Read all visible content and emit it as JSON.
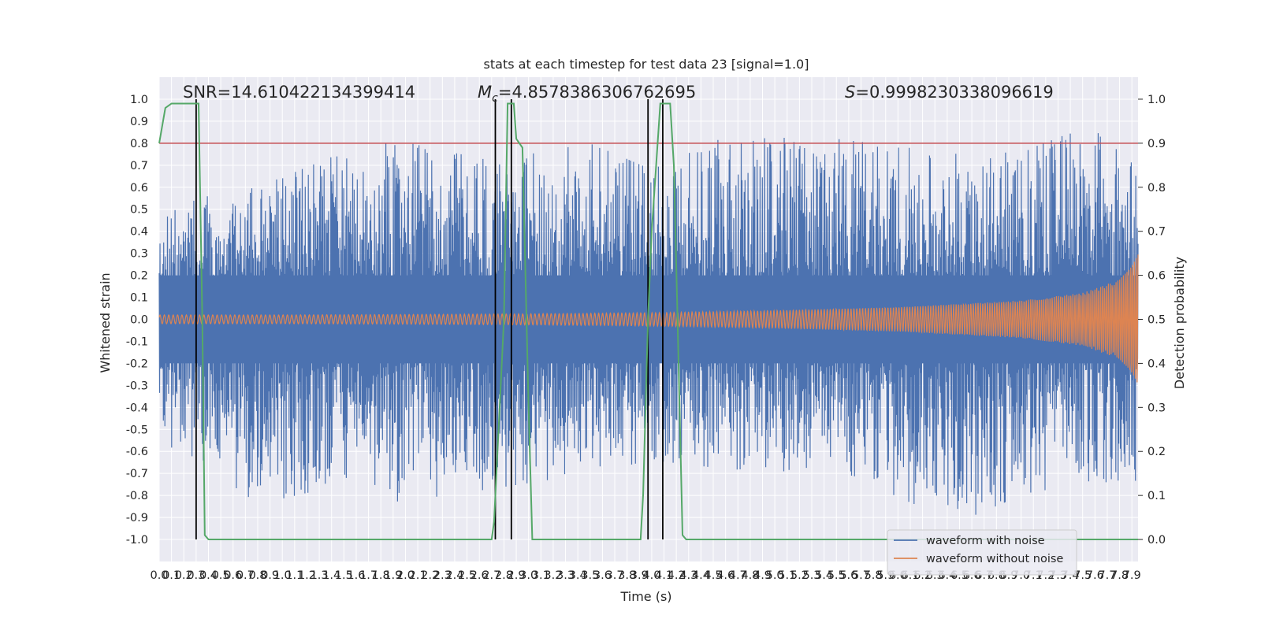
{
  "chart_data": {
    "type": "line",
    "title": "stats at each timestep for test data 23 [signal=1.0]",
    "xlabel": "Time (s)",
    "ylabel": "Whitened strain",
    "y2label": "Detection probability",
    "xlim": [
      0.0,
      7.95
    ],
    "ylim": [
      -1.1,
      1.1
    ],
    "y2lim": [
      -0.05,
      1.05
    ],
    "x_ticks": [
      "0.0",
      "0.1",
      "0.2",
      "0.3",
      "0.4",
      "0.5",
      "0.6",
      "0.7",
      "0.8",
      "0.9",
      "1.0",
      "1.1",
      "1.2",
      "1.3",
      "1.4",
      "1.5",
      "1.6",
      "1.7",
      "1.8",
      "1.9",
      "2.0",
      "2.1",
      "2.2",
      "2.3",
      "2.4",
      "2.5",
      "2.6",
      "2.7",
      "2.8",
      "2.9",
      "3.0",
      "3.1",
      "3.2",
      "3.3",
      "3.4",
      "3.5",
      "3.6",
      "3.7",
      "3.8",
      "3.9",
      "4.0",
      "4.1",
      "4.2",
      "4.3",
      "4.4",
      "4.5",
      "4.6",
      "4.7",
      "4.8",
      "4.9",
      "5.0",
      "5.1",
      "5.2",
      "5.3",
      "5.4",
      "5.5",
      "5.6",
      "5.7",
      "5.8",
      "5.9",
      "6.0",
      "6.1",
      "6.2",
      "6.3",
      "6.4",
      "6.5",
      "6.6",
      "6.7",
      "6.8",
      "6.9",
      "7.0",
      "7.1",
      "7.2",
      "7.3",
      "7.4",
      "7.5",
      "7.6",
      "7.7",
      "7.8",
      "7.9"
    ],
    "y_ticks": [
      "-1.0",
      "-0.9",
      "-0.8",
      "-0.7",
      "-0.6",
      "-0.5",
      "-0.4",
      "-0.3",
      "-0.2",
      "-0.1",
      "0.0",
      "0.1",
      "0.2",
      "0.3",
      "0.4",
      "0.5",
      "0.6",
      "0.7",
      "0.8",
      "0.9",
      "1.0"
    ],
    "y2_ticks": [
      "0.0",
      "0.1",
      "0.2",
      "0.3",
      "0.4",
      "0.5",
      "0.6",
      "0.7",
      "0.8",
      "0.9",
      "1.0"
    ],
    "threshold": 0.9,
    "series": [
      {
        "name": "waveform with noise",
        "axis": "left",
        "color": "#4c72b0",
        "style": "dense noisy strain, envelope approximately ±0.5 with peaks to ±0.9",
        "x": [
          0.0,
          0.3,
          0.8,
          1.5,
          1.95,
          2.7,
          3.5,
          4.0,
          4.6,
          5.5,
          6.5,
          7.0,
          7.6,
          7.95
        ],
        "upper_envelope": [
          0.46,
          0.55,
          0.6,
          0.76,
          0.81,
          0.72,
          0.8,
          0.68,
          0.83,
          0.82,
          0.75,
          0.76,
          0.89,
          0.69
        ],
        "lower_envelope": [
          -0.56,
          -0.63,
          -0.84,
          -0.75,
          -0.83,
          -0.77,
          -0.7,
          -0.64,
          -0.68,
          -0.7,
          -0.92,
          -0.8,
          -0.73,
          -0.77
        ]
      },
      {
        "name": "waveform without noise",
        "axis": "left",
        "color": "#dd8452",
        "style": "chirp signal with growing amplitude",
        "x": [
          0.0,
          1.0,
          2.0,
          3.0,
          4.0,
          5.0,
          6.0,
          7.0,
          7.5,
          7.8,
          7.95
        ],
        "amplitude": [
          0.02,
          0.02,
          0.022,
          0.025,
          0.03,
          0.04,
          0.055,
          0.085,
          0.12,
          0.18,
          0.3
        ]
      },
      {
        "name": "Detection probability",
        "axis": "right",
        "color": "#55a868",
        "x": [
          0.0,
          0.05,
          0.1,
          0.2,
          0.25,
          0.3,
          0.32,
          0.35,
          0.37,
          0.4,
          0.45,
          0.5,
          1.0,
          2.0,
          2.7,
          2.72,
          2.8,
          2.83,
          2.88,
          2.9,
          2.95,
          3.0,
          3.03,
          3.5,
          3.91,
          3.93,
          3.97,
          4.0,
          4.07,
          4.12,
          4.15,
          4.18,
          4.21,
          4.25,
          4.28,
          5.0,
          6.0,
          7.0,
          7.95
        ],
        "y": [
          0.9,
          0.98,
          0.99,
          0.99,
          0.99,
          0.99,
          0.99,
          0.5,
          0.01,
          0.0,
          0.0,
          0.0,
          0.0,
          0.0,
          0.0,
          0.04,
          0.5,
          0.99,
          0.99,
          0.91,
          0.89,
          0.3,
          0.0,
          0.0,
          0.0,
          0.1,
          0.5,
          0.7,
          0.99,
          0.99,
          0.99,
          0.85,
          0.5,
          0.01,
          0.0,
          0.0,
          0.0,
          0.0,
          0.0
        ]
      }
    ],
    "vertical_markers": [
      0.3,
      2.73,
      2.86,
      3.97,
      4.09
    ],
    "marker_color": "#000000",
    "threshold_color": "#c44e52",
    "annotations": [
      {
        "label": "SNR",
        "sep": "=",
        "value": "14.610422134399414"
      },
      {
        "label": "M",
        "sub": "c",
        "sep": "=",
        "value": "4.8578386306762695"
      },
      {
        "label": "S",
        "sep": "=",
        "value": "0.9998230338096619"
      }
    ],
    "legend": {
      "location": "lower-right",
      "entries": [
        "waveform with noise",
        "waveform without noise"
      ]
    },
    "grid": true,
    "background": "#eaeaf2"
  }
}
